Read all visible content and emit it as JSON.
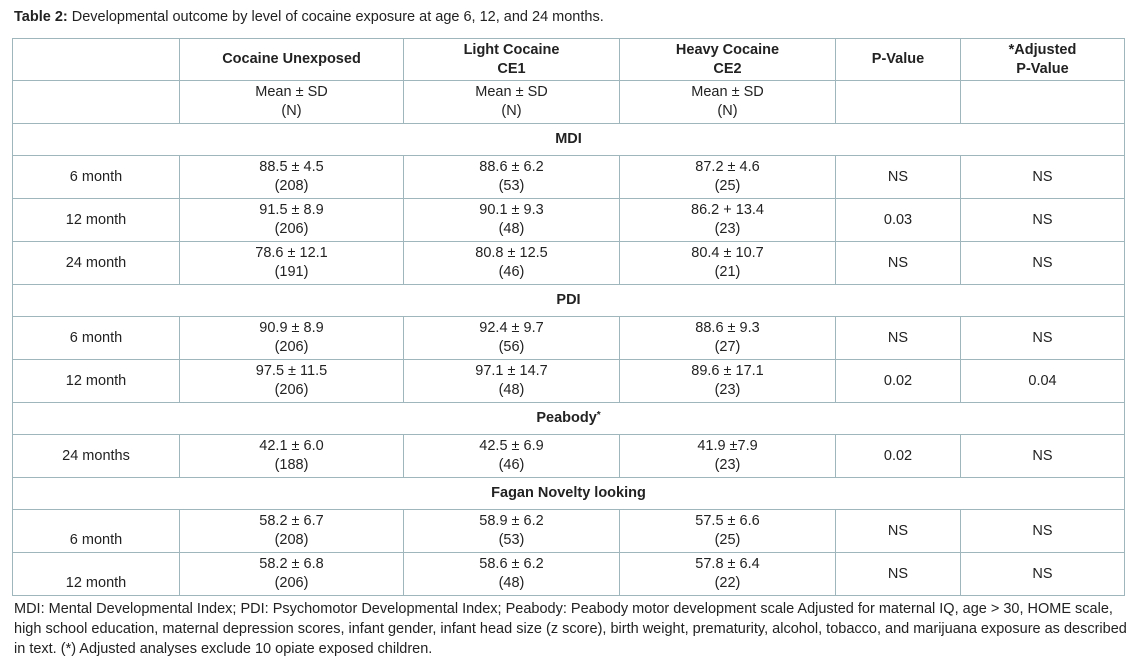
{
  "caption": {
    "label": "Table 2:",
    "text": " Developmental outcome by level of cocaine exposure at age 6, 12, and 24 months."
  },
  "header": {
    "col1": "Cocaine Unexposed",
    "col2_line1": "Light Cocaine",
    "col2_line2": "CE1",
    "col3_line1": "Heavy Cocaine",
    "col3_line2": "CE2",
    "col4": "P-Value",
    "col5_line1": "*Adjusted",
    "col5_line2": "P-Value"
  },
  "subheader": {
    "stat": "Mean ± SD",
    "n": "(N)"
  },
  "sections": [
    {
      "title": "MDI",
      "rows": [
        {
          "label": "6 month",
          "c1": [
            "88.5 ± 4.5",
            "(208)"
          ],
          "c2": [
            "88.6 ±  6.2",
            "(53)"
          ],
          "c3": [
            "87.2  ± 4.6",
            "(25)"
          ],
          "p": "NS",
          "adj": "NS"
        },
        {
          "label": "12 month",
          "c1": [
            "91.5 ± 8.9",
            "(206)"
          ],
          "c2": [
            "90.1 ±  9.3",
            "(48)"
          ],
          "c3": [
            "86.2  + 13.4",
            "(23)"
          ],
          "p": "0.03",
          "adj": "NS"
        },
        {
          "label": "24 month",
          "c1": [
            "78.6 ± 12.1",
            "(191)"
          ],
          "c2": [
            "80.8 ± 12.5",
            "(46)"
          ],
          "c3": [
            "80.4 ± 10.7",
            "(21)"
          ],
          "p": "NS",
          "adj": "NS"
        }
      ]
    },
    {
      "title": "PDI",
      "rows": [
        {
          "label": "6 month",
          "c1": [
            "90.9  ± 8.9",
            "(206)"
          ],
          "c2": [
            "92.4  ± 9.7",
            "(56)"
          ],
          "c3": [
            "88.6 ± 9.3",
            "(27)"
          ],
          "p": "NS",
          "adj": "NS"
        },
        {
          "label": "12 month",
          "c1": [
            "97.5  ± 11.5",
            "(206)"
          ],
          "c2": [
            "97.1  ± 14.7",
            "(48)"
          ],
          "c3": [
            "89.6  ± 17.1",
            "(23)"
          ],
          "p": "0.02",
          "adj": "0.04"
        }
      ]
    },
    {
      "title": "Peabody",
      "title_mark": "*",
      "rows": [
        {
          "label": "24 months",
          "c1": [
            "42.1  ± 6.0",
            "(188)"
          ],
          "c2": [
            "42.5 ±  6.9",
            "(46)"
          ],
          "c3": [
            "41.9  ±7.9",
            "(23)"
          ],
          "p": "0.02",
          "adj": "NS"
        }
      ]
    },
    {
      "title": "Fagan Novelty looking",
      "rows": [
        {
          "label": "6 month",
          "c1": [
            "58.2 ± 6.7",
            "(208)"
          ],
          "c2": [
            "58.9  ± 6.2",
            "(53)"
          ],
          "c3": [
            "57.5  ±  6.6",
            "(25)"
          ],
          "p": "NS",
          "adj": "NS"
        },
        {
          "label": "12 month",
          "c1": [
            "58.2 ± 6.8",
            "(206)"
          ],
          "c2": [
            "58.6  ± 6.2",
            "(48)"
          ],
          "c3": [
            "57.8  ±  6.4",
            "(22)"
          ],
          "p": "NS",
          "adj": "NS"
        }
      ]
    }
  ],
  "footnote": "MDI: Mental Developmental Index; PDI: Psychomotor Developmental Index; Peabody: Peabody motor development scale  Adjusted for maternal IQ, age > 30, HOME scale, high school education, maternal depression scores, infant gender, infant head size (z score), birth weight, prematurity, alcohol, tobacco, and marijuana exposure as described in text. (*) Adjusted analyses exclude 10 opiate exposed children."
}
